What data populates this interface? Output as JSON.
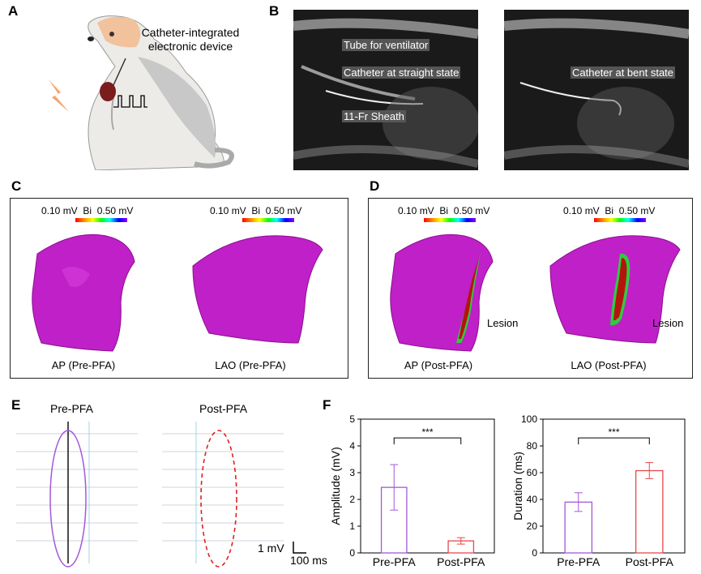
{
  "panels": {
    "A": {
      "label": "A",
      "device_line1": "Catheter-integrated",
      "device_line2": "electronic device"
    },
    "B": {
      "label": "B",
      "left": {
        "tube": "Tube for ventilator",
        "catheter": "Catheter at straight state",
        "sheath": "11-Fr Sheath"
      },
      "right": {
        "catheter": "Catheter at bent state"
      }
    },
    "C": {
      "label": "C",
      "colorbar": {
        "low": "0.10 mV",
        "mode": "Bi",
        "high": "0.50 mV"
      },
      "views": [
        "AP (Pre-PFA)",
        "LAO (Pre-PFA)"
      ]
    },
    "D": {
      "label": "D",
      "colorbar": {
        "low": "0.10 mV",
        "mode": "Bi",
        "high": "0.50 mV"
      },
      "views": [
        "AP (Post-PFA)",
        "LAO (Post-PFA)"
      ],
      "lesion": "Lesion"
    },
    "E": {
      "label": "E",
      "pre": "Pre-PFA",
      "post": "Post-PFA",
      "scale_v": "1 mV",
      "scale_t": "100 ms"
    },
    "F": {
      "label": "F",
      "significance": "***"
    }
  },
  "chart_data": [
    {
      "type": "bar",
      "categories": [
        "Pre-PFA",
        "Post-PFA"
      ],
      "values": [
        2.45,
        0.45
      ],
      "errors": [
        0.85,
        0.12
      ],
      "colors": [
        "#a259d9",
        "#e8474a"
      ],
      "ylabel": "Amplitude (mV)",
      "ylim": [
        0,
        5
      ],
      "yticks": [
        "0",
        "1",
        "2",
        "3",
        "4",
        "5"
      ],
      "significance": "***"
    },
    {
      "type": "bar",
      "categories": [
        "Pre-PFA",
        "Post-PFA"
      ],
      "values": [
        38,
        61.5
      ],
      "errors": [
        7,
        6
      ],
      "colors": [
        "#a259d9",
        "#e8474a"
      ],
      "ylabel": "Duration (ms)",
      "ylim": [
        0,
        100
      ],
      "yticks": [
        "0",
        "20",
        "40",
        "60",
        "80",
        "100"
      ],
      "significance": "***"
    }
  ]
}
